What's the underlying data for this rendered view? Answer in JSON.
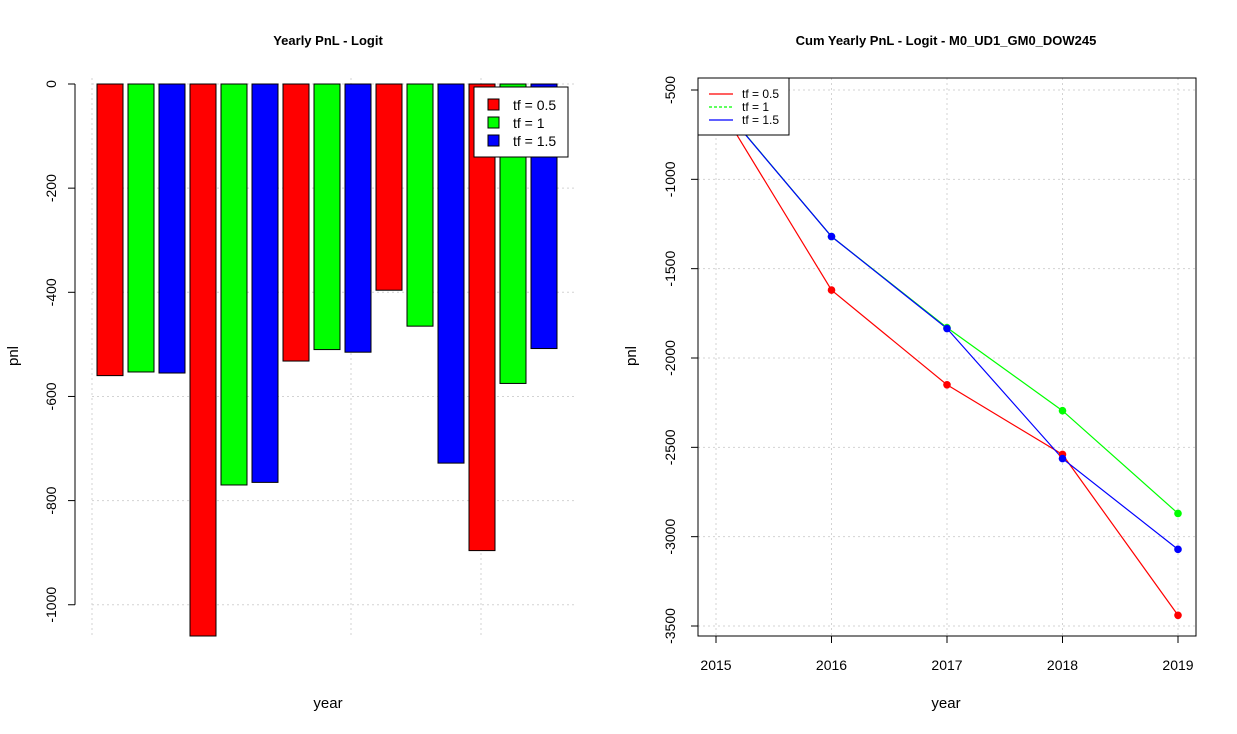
{
  "colors": {
    "tf_0_5": "#ff0000",
    "tf_1": "#00ff00",
    "tf_1_5": "#0000ff"
  },
  "chart_data": [
    {
      "type": "bar",
      "title": "Yearly PnL - Logit",
      "xlabel": "year",
      "ylabel": "pnl",
      "ylim": [
        -1060,
        0
      ],
      "yticks": [
        0,
        -200,
        -400,
        -600,
        -800,
        -1000
      ],
      "grid": true,
      "legend_position": "top-right",
      "groups": 5,
      "series": [
        {
          "name": "tf = 0.5",
          "values": [
            -560,
            -1060,
            -532,
            -396,
            -896
          ]
        },
        {
          "name": "tf = 1",
          "values": [
            -553,
            -770,
            -510,
            -465,
            -575
          ]
        },
        {
          "name": "tf = 1.5",
          "values": [
            -555,
            -765,
            -515,
            -728,
            -508
          ]
        }
      ]
    },
    {
      "type": "line",
      "title": "Cum Yearly PnL - Logit - M0_UD1_GM0_DOW245",
      "xlabel": "year",
      "ylabel": "pnl",
      "x": [
        2015,
        2016,
        2017,
        2018,
        2019
      ],
      "ylim": [
        -3550,
        -450
      ],
      "yticks": [
        -500,
        -1000,
        -1500,
        -2000,
        -2500,
        -3000,
        -3500
      ],
      "grid": true,
      "legend_position": "top-left",
      "series": [
        {
          "name": "tf = 0.5",
          "values": [
            -560,
            -1620,
            -2150,
            -2540,
            -3440
          ]
        },
        {
          "name": "tf = 1",
          "values": [
            -553,
            -1320,
            -1830,
            -2295,
            -2870
          ]
        },
        {
          "name": "tf = 1.5",
          "values": [
            -555,
            -1320,
            -1835,
            -2563,
            -3071
          ]
        }
      ]
    }
  ]
}
